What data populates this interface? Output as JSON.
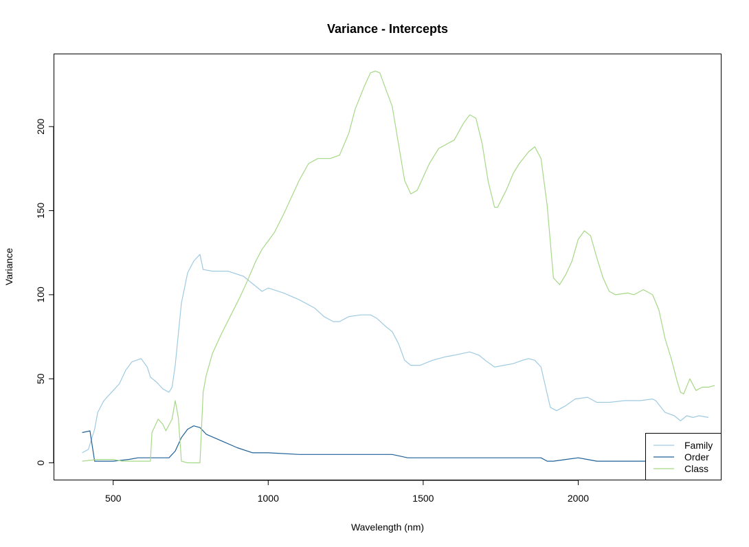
{
  "chart_data": {
    "type": "line",
    "title": "Variance - Intercepts",
    "xlabel": "Wavelength (nm)",
    "ylabel": "Variance",
    "xlim": [
      310,
      2460
    ],
    "ylim": [
      -10,
      243
    ],
    "x_ticks": [
      500,
      1000,
      1500,
      2000
    ],
    "y_ticks": [
      0,
      50,
      100,
      150,
      200
    ],
    "x_tick_labels": [
      "500",
      "1000",
      "1500",
      "2000"
    ],
    "y_tick_labels": [
      "0",
      "50",
      "100",
      "150",
      "200"
    ],
    "grid": false,
    "legend_position": "bottom-right",
    "series": [
      {
        "name": "Family",
        "color": "#9ecae1",
        "points": [
          [
            400,
            6
          ],
          [
            420,
            8
          ],
          [
            440,
            20
          ],
          [
            450,
            30
          ],
          [
            470,
            37
          ],
          [
            500,
            43
          ],
          [
            520,
            47
          ],
          [
            540,
            55
          ],
          [
            560,
            60
          ],
          [
            590,
            62
          ],
          [
            610,
            57
          ],
          [
            620,
            51
          ],
          [
            640,
            48
          ],
          [
            660,
            44
          ],
          [
            680,
            42
          ],
          [
            690,
            45
          ],
          [
            700,
            58
          ],
          [
            720,
            95
          ],
          [
            740,
            113
          ],
          [
            760,
            120
          ],
          [
            780,
            124
          ],
          [
            790,
            115
          ],
          [
            820,
            114
          ],
          [
            870,
            114
          ],
          [
            920,
            111
          ],
          [
            960,
            105
          ],
          [
            980,
            102
          ],
          [
            1000,
            104
          ],
          [
            1050,
            101
          ],
          [
            1100,
            97
          ],
          [
            1150,
            92
          ],
          [
            1180,
            87
          ],
          [
            1210,
            84
          ],
          [
            1230,
            84
          ],
          [
            1260,
            87
          ],
          [
            1300,
            88
          ],
          [
            1330,
            88
          ],
          [
            1350,
            86
          ],
          [
            1380,
            81
          ],
          [
            1400,
            78
          ],
          [
            1420,
            71
          ],
          [
            1440,
            61
          ],
          [
            1460,
            58
          ],
          [
            1490,
            58
          ],
          [
            1530,
            61
          ],
          [
            1570,
            63
          ],
          [
            1600,
            64
          ],
          [
            1650,
            66
          ],
          [
            1680,
            64
          ],
          [
            1700,
            61
          ],
          [
            1730,
            57
          ],
          [
            1760,
            58
          ],
          [
            1790,
            59
          ],
          [
            1820,
            61
          ],
          [
            1840,
            62
          ],
          [
            1860,
            61
          ],
          [
            1880,
            57
          ],
          [
            1900,
            41
          ],
          [
            1910,
            33
          ],
          [
            1930,
            31
          ],
          [
            1960,
            34
          ],
          [
            1990,
            38
          ],
          [
            2030,
            39
          ],
          [
            2060,
            36
          ],
          [
            2100,
            36
          ],
          [
            2150,
            37
          ],
          [
            2200,
            37
          ],
          [
            2240,
            38
          ],
          [
            2250,
            37
          ],
          [
            2280,
            30
          ],
          [
            2310,
            28
          ],
          [
            2330,
            25
          ],
          [
            2350,
            28
          ],
          [
            2370,
            27
          ],
          [
            2390,
            28
          ],
          [
            2420,
            27
          ]
        ]
      },
      {
        "name": "Order",
        "color": "#1c5f99",
        "points": [
          [
            400,
            18
          ],
          [
            425,
            19
          ],
          [
            440,
            1
          ],
          [
            500,
            1
          ],
          [
            550,
            2
          ],
          [
            580,
            3
          ],
          [
            610,
            3
          ],
          [
            640,
            3
          ],
          [
            660,
            3
          ],
          [
            680,
            3
          ],
          [
            700,
            7
          ],
          [
            720,
            15
          ],
          [
            740,
            20
          ],
          [
            760,
            22
          ],
          [
            780,
            21
          ],
          [
            800,
            17
          ],
          [
            850,
            13
          ],
          [
            900,
            9
          ],
          [
            950,
            6
          ],
          [
            1000,
            6
          ],
          [
            1100,
            5
          ],
          [
            1200,
            5
          ],
          [
            1300,
            5
          ],
          [
            1350,
            5
          ],
          [
            1400,
            5
          ],
          [
            1450,
            3
          ],
          [
            1500,
            3
          ],
          [
            1600,
            3
          ],
          [
            1650,
            3
          ],
          [
            1700,
            3
          ],
          [
            1800,
            3
          ],
          [
            1880,
            3
          ],
          [
            1900,
            1
          ],
          [
            1920,
            1
          ],
          [
            1960,
            2
          ],
          [
            2000,
            3
          ],
          [
            2030,
            2
          ],
          [
            2060,
            1
          ],
          [
            2100,
            1
          ],
          [
            2200,
            1
          ],
          [
            2300,
            1
          ],
          [
            2420,
            1
          ]
        ]
      },
      {
        "name": "Class",
        "color": "#a5d886",
        "points": [
          [
            400,
            1
          ],
          [
            450,
            2
          ],
          [
            500,
            2
          ],
          [
            530,
            1
          ],
          [
            580,
            1
          ],
          [
            620,
            1
          ],
          [
            625,
            18
          ],
          [
            645,
            26
          ],
          [
            660,
            23
          ],
          [
            670,
            19
          ],
          [
            690,
            26
          ],
          [
            700,
            37
          ],
          [
            710,
            27
          ],
          [
            720,
            1
          ],
          [
            740,
            0
          ],
          [
            770,
            0
          ],
          [
            780,
            0
          ],
          [
            790,
            42
          ],
          [
            800,
            52
          ],
          [
            820,
            65
          ],
          [
            850,
            77
          ],
          [
            880,
            88
          ],
          [
            910,
            99
          ],
          [
            930,
            107
          ],
          [
            960,
            120
          ],
          [
            980,
            127
          ],
          [
            1000,
            132
          ],
          [
            1020,
            137
          ],
          [
            1050,
            148
          ],
          [
            1080,
            160
          ],
          [
            1100,
            168
          ],
          [
            1130,
            178
          ],
          [
            1160,
            181
          ],
          [
            1200,
            181
          ],
          [
            1230,
            183
          ],
          [
            1260,
            196
          ],
          [
            1280,
            210
          ],
          [
            1310,
            224
          ],
          [
            1330,
            232
          ],
          [
            1345,
            233
          ],
          [
            1360,
            232
          ],
          [
            1380,
            222
          ],
          [
            1400,
            212
          ],
          [
            1420,
            190
          ],
          [
            1440,
            168
          ],
          [
            1460,
            160
          ],
          [
            1480,
            162
          ],
          [
            1520,
            178
          ],
          [
            1550,
            187
          ],
          [
            1600,
            192
          ],
          [
            1630,
            202
          ],
          [
            1650,
            207
          ],
          [
            1670,
            205
          ],
          [
            1690,
            190
          ],
          [
            1710,
            167
          ],
          [
            1730,
            152
          ],
          [
            1740,
            152
          ],
          [
            1770,
            163
          ],
          [
            1790,
            172
          ],
          [
            1810,
            178
          ],
          [
            1840,
            185
          ],
          [
            1860,
            188
          ],
          [
            1880,
            181
          ],
          [
            1900,
            153
          ],
          [
            1920,
            110
          ],
          [
            1940,
            106
          ],
          [
            1960,
            112
          ],
          [
            1980,
            120
          ],
          [
            2000,
            133
          ],
          [
            2020,
            138
          ],
          [
            2040,
            135
          ],
          [
            2060,
            122
          ],
          [
            2080,
            110
          ],
          [
            2100,
            102
          ],
          [
            2120,
            100
          ],
          [
            2160,
            101
          ],
          [
            2180,
            100
          ],
          [
            2210,
            103
          ],
          [
            2240,
            100
          ],
          [
            2260,
            91
          ],
          [
            2280,
            74
          ],
          [
            2300,
            62
          ],
          [
            2320,
            48
          ],
          [
            2330,
            42
          ],
          [
            2340,
            41
          ],
          [
            2360,
            50
          ],
          [
            2380,
            43
          ],
          [
            2400,
            45
          ],
          [
            2420,
            45
          ],
          [
            2440,
            46
          ]
        ]
      }
    ]
  }
}
